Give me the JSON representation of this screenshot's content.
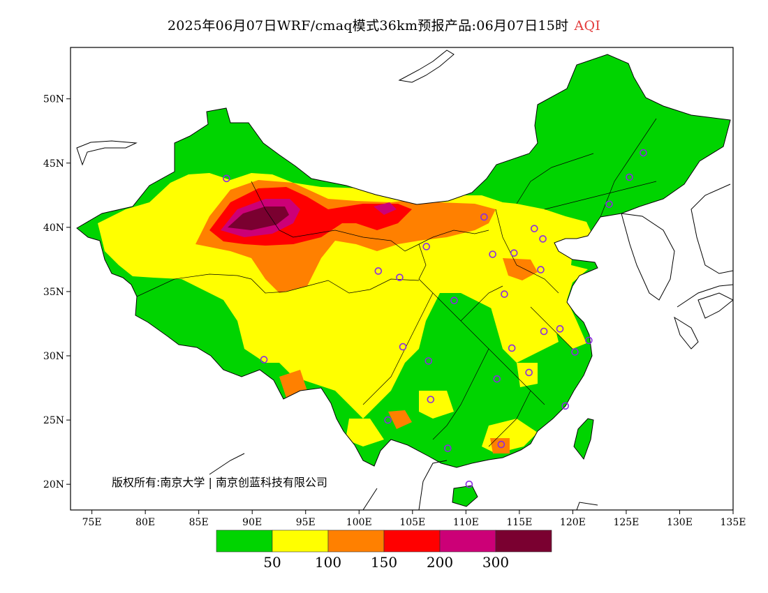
{
  "title": {
    "main": "2025年06月07日WRF/cmaq模式36km预报产品:06月07日15时",
    "variable": "AQI"
  },
  "axes": {
    "lat_labels": [
      "50N",
      "45N",
      "40N",
      "35N",
      "30N",
      "25N",
      "20N"
    ],
    "lon_labels": [
      "75E",
      "80E",
      "85E",
      "90E",
      "95E",
      "100E",
      "105E",
      "110E",
      "115E",
      "120E",
      "125E",
      "130E",
      "135E"
    ],
    "lon_range": [
      73,
      135
    ],
    "lat_range": [
      18,
      54
    ]
  },
  "copyright": "版权所有:南京大学 | 南京创蓝科技有限公司",
  "legend": {
    "colors": [
      "#00d400",
      "#ffff00",
      "#ff8000",
      "#ff0000",
      "#cc0077",
      "#7a0030"
    ],
    "labels": [
      "50",
      "100",
      "150",
      "200",
      "300"
    ]
  },
  "colors": {
    "good": "#00d400",
    "moderate": "#ffff00",
    "usg": "#ff8000",
    "unhealthy": "#ff0000",
    "very_unhealthy": "#cc0077",
    "hazardous": "#7a0030",
    "station_marker": "#8a2be2"
  },
  "stations": [
    {
      "lon": 87.6,
      "lat": 43.8
    },
    {
      "lon": 91.1,
      "lat": 29.7
    },
    {
      "lon": 101.8,
      "lat": 36.6
    },
    {
      "lon": 103.8,
      "lat": 36.1
    },
    {
      "lon": 106.3,
      "lat": 38.5
    },
    {
      "lon": 111.7,
      "lat": 40.8
    },
    {
      "lon": 112.5,
      "lat": 37.9
    },
    {
      "lon": 114.5,
      "lat": 38.0
    },
    {
      "lon": 116.4,
      "lat": 39.9
    },
    {
      "lon": 117.2,
      "lat": 39.1
    },
    {
      "lon": 117.0,
      "lat": 36.7
    },
    {
      "lon": 113.6,
      "lat": 34.8
    },
    {
      "lon": 108.9,
      "lat": 34.3
    },
    {
      "lon": 104.1,
      "lat": 30.7
    },
    {
      "lon": 106.5,
      "lat": 29.6
    },
    {
      "lon": 106.7,
      "lat": 26.6
    },
    {
      "lon": 102.7,
      "lat": 25.0
    },
    {
      "lon": 108.3,
      "lat": 22.8
    },
    {
      "lon": 113.3,
      "lat": 23.1
    },
    {
      "lon": 110.3,
      "lat": 20.0
    },
    {
      "lon": 112.9,
      "lat": 28.2
    },
    {
      "lon": 114.3,
      "lat": 30.6
    },
    {
      "lon": 115.9,
      "lat": 28.7
    },
    {
      "lon": 117.3,
      "lat": 31.9
    },
    {
      "lon": 118.8,
      "lat": 32.1
    },
    {
      "lon": 120.2,
      "lat": 30.3
    },
    {
      "lon": 121.5,
      "lat": 31.2
    },
    {
      "lon": 119.3,
      "lat": 26.1
    },
    {
      "lon": 123.4,
      "lat": 41.8
    },
    {
      "lon": 125.3,
      "lat": 43.9
    },
    {
      "lon": 126.6,
      "lat": 45.8
    }
  ]
}
